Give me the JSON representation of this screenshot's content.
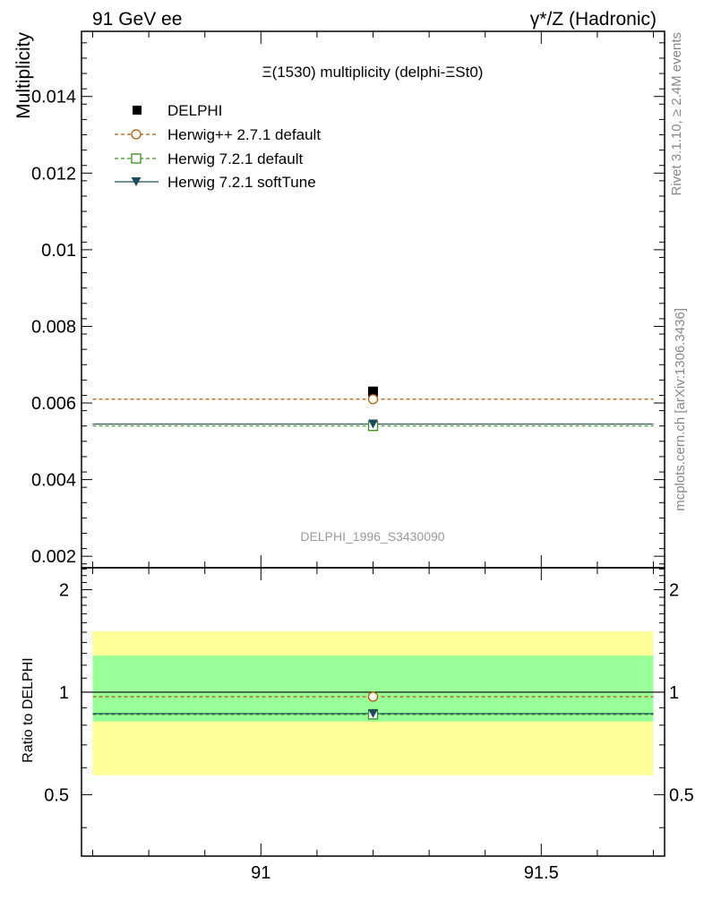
{
  "header": {
    "left": "91 GeV ee",
    "right": "γ*/Z (Hadronic)"
  },
  "side_labels": {
    "rivet": "Rivet 3.1.10, ≥ 2.4M events",
    "mcplots": "mcplots.cern.ch [arXiv:1306.3436]"
  },
  "chart_data": [
    {
      "type": "scatter",
      "title": "Ξ(1530) multiplicity (delphi-ΞSt0)",
      "ylabel": "Multiplicity",
      "watermark": "DELPHI_1996_S3430090",
      "xlim": [
        90.68,
        91.72
      ],
      "ylim": [
        0.0017,
        0.0157
      ],
      "yticks": [
        0.002,
        0.004,
        0.006,
        0.008,
        0.01,
        0.012,
        0.014
      ],
      "ytick_labels": [
        "0.002",
        "0.004",
        "0.006",
        "0.008",
        "0.01",
        "0.012",
        "0.014"
      ],
      "data": {
        "name": "DELPHI",
        "x": [
          91.2
        ],
        "y": [
          0.0063
        ],
        "color": "#000000",
        "marker": "filled-square"
      },
      "series": [
        {
          "name": "Herwig++ 2.7.1 default",
          "x_range": [
            90.7,
            91.7
          ],
          "y": 0.0061,
          "point_x": 91.2,
          "color": "#b35806",
          "dash": true,
          "marker": "open-circle"
        },
        {
          "name": "Herwig 7.2.1 default",
          "x_range": [
            90.7,
            91.7
          ],
          "y": 0.0054,
          "point_x": 91.2,
          "color": "#3a8d1c",
          "dash": true,
          "marker": "open-square"
        },
        {
          "name": "Herwig 7.2.1 softTune",
          "x_range": [
            90.7,
            91.7
          ],
          "y": 0.00545,
          "point_x": 91.2,
          "color": "#1c4d5e",
          "dash": false,
          "marker": "filled-triangle-down"
        }
      ],
      "legend": "top-left"
    },
    {
      "type": "scatter",
      "ylabel": "Ratio to DELPHI",
      "xlim": [
        90.68,
        91.72
      ],
      "ylim": [
        0.33,
        2.32
      ],
      "yticks": [
        0.5,
        1,
        2
      ],
      "ytick_labels": [
        "0.5",
        "1",
        "2"
      ],
      "xticks": [
        91,
        91.5
      ],
      "xtick_labels": [
        "91",
        "91.5"
      ],
      "bands": {
        "x_range": [
          90.7,
          91.7
        ],
        "outer": {
          "low": 0.57,
          "high": 1.51,
          "color": "#ffff99"
        },
        "inner": {
          "low": 0.82,
          "high": 1.28,
          "color": "#99ff99"
        }
      },
      "reference": 1,
      "series": [
        {
          "name": "Herwig++ 2.7.1 default",
          "y": 0.97,
          "point_x": 91.2,
          "color": "#b35806",
          "dash": true,
          "marker": "open-circle"
        },
        {
          "name": "Herwig 7.2.1 default",
          "y": 0.86,
          "point_x": 91.2,
          "color": "#3a8d1c",
          "dash": true,
          "marker": "open-square"
        },
        {
          "name": "Herwig 7.2.1 softTune",
          "y": 0.865,
          "point_x": 91.2,
          "color": "#1c4d5e",
          "dash": false,
          "marker": "filled-triangle-down"
        }
      ]
    }
  ]
}
